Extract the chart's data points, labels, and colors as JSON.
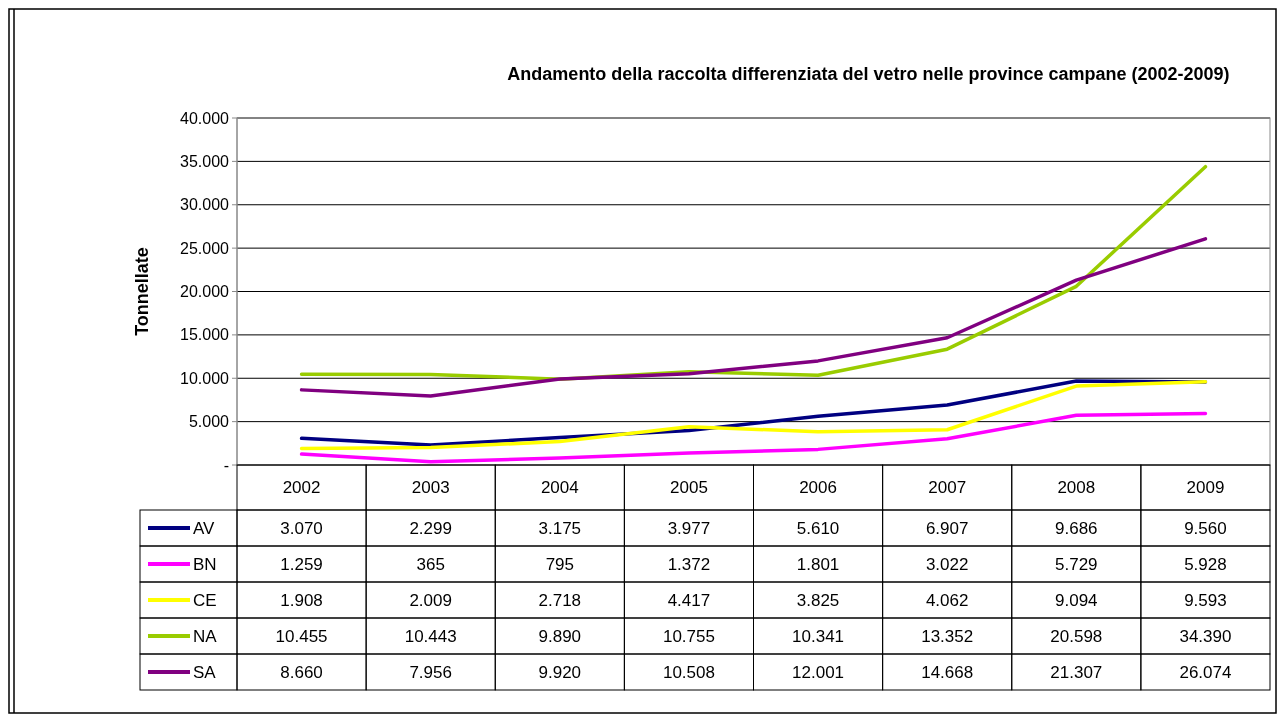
{
  "chart_data": {
    "type": "line",
    "title": "Andamento della raccolta differenziata del vetro nelle province campane (2002-2009)",
    "ylabel": "Tonnellate",
    "categories": [
      "2002",
      "2003",
      "2004",
      "2005",
      "2006",
      "2007",
      "2008",
      "2009"
    ],
    "series": [
      {
        "name": "AV",
        "color": "#000080",
        "values": [
          3070,
          2299,
          3175,
          3977,
          5610,
          6907,
          9686,
          9560
        ],
        "value_labels": [
          "3.070",
          "2.299",
          "3.175",
          "3.977",
          "5.610",
          "6.907",
          "9.686",
          "9.560"
        ]
      },
      {
        "name": "BN",
        "color": "#ff00ff",
        "values": [
          1259,
          365,
          795,
          1372,
          1801,
          3022,
          5729,
          5928
        ],
        "value_labels": [
          "1.259",
          "365",
          "795",
          "1.372",
          "1.801",
          "3.022",
          "5.729",
          "5.928"
        ]
      },
      {
        "name": "CE",
        "color": "#ffff00",
        "values": [
          1908,
          2009,
          2718,
          4417,
          3825,
          4062,
          9094,
          9593
        ],
        "value_labels": [
          "1.908",
          "2.009",
          "2.718",
          "4.417",
          "3.825",
          "4.062",
          "9.094",
          "9.593"
        ]
      },
      {
        "name": "NA",
        "color": "#99cc00",
        "values": [
          10455,
          10443,
          9890,
          10755,
          10341,
          13352,
          20598,
          34390
        ],
        "value_labels": [
          "10.455",
          "10.443",
          "9.890",
          "10.755",
          "10.341",
          "13.352",
          "20.598",
          "34.390"
        ]
      },
      {
        "name": "SA",
        "color": "#800080",
        "values": [
          8660,
          7956,
          9920,
          10508,
          12001,
          14668,
          21307,
          26074
        ],
        "value_labels": [
          "8.660",
          "7.956",
          "9.920",
          "10.508",
          "12.001",
          "14.668",
          "21.307",
          "26.074"
        ]
      }
    ],
    "ylim": [
      0,
      40000
    ],
    "yticks": [
      {
        "value": 0,
        "label": "-"
      },
      {
        "value": 5000,
        "label": "5.000"
      },
      {
        "value": 10000,
        "label": "10.000"
      },
      {
        "value": 15000,
        "label": "15.000"
      },
      {
        "value": 20000,
        "label": "20.000"
      },
      {
        "value": 25000,
        "label": "25.000"
      },
      {
        "value": 30000,
        "label": "30.000"
      },
      {
        "value": 35000,
        "label": "35.000"
      },
      {
        "value": 40000,
        "label": "40.000"
      }
    ],
    "grid": "y",
    "legend": "bottom",
    "marker": "none",
    "line_style": "solid"
  }
}
